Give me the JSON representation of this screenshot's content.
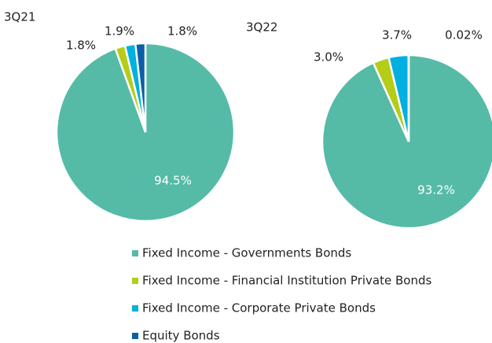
{
  "legend": {
    "categories": [
      "Fixed Income - Governments Bonds",
      "Fixed Income - Financial Institution Private Bonds",
      "Fixed Income - Corporate Private Bonds",
      "Equity Bonds"
    ],
    "colors": [
      "#55bba7",
      "#b5cc18",
      "#00b0e0",
      "#0b5ea8"
    ]
  },
  "chart_data": [
    {
      "type": "pie",
      "title": "3Q21",
      "values": [
        94.5,
        1.8,
        1.9,
        1.8
      ],
      "value_labels": [
        "94.5%",
        "1.8%",
        "1.9%",
        "1.8%"
      ]
    },
    {
      "type": "pie",
      "title": "3Q22",
      "values": [
        93.2,
        3.0,
        3.7,
        0.02
      ],
      "value_labels": [
        "93.2%",
        "3.0%",
        "3.7%",
        "0.02%"
      ]
    }
  ]
}
